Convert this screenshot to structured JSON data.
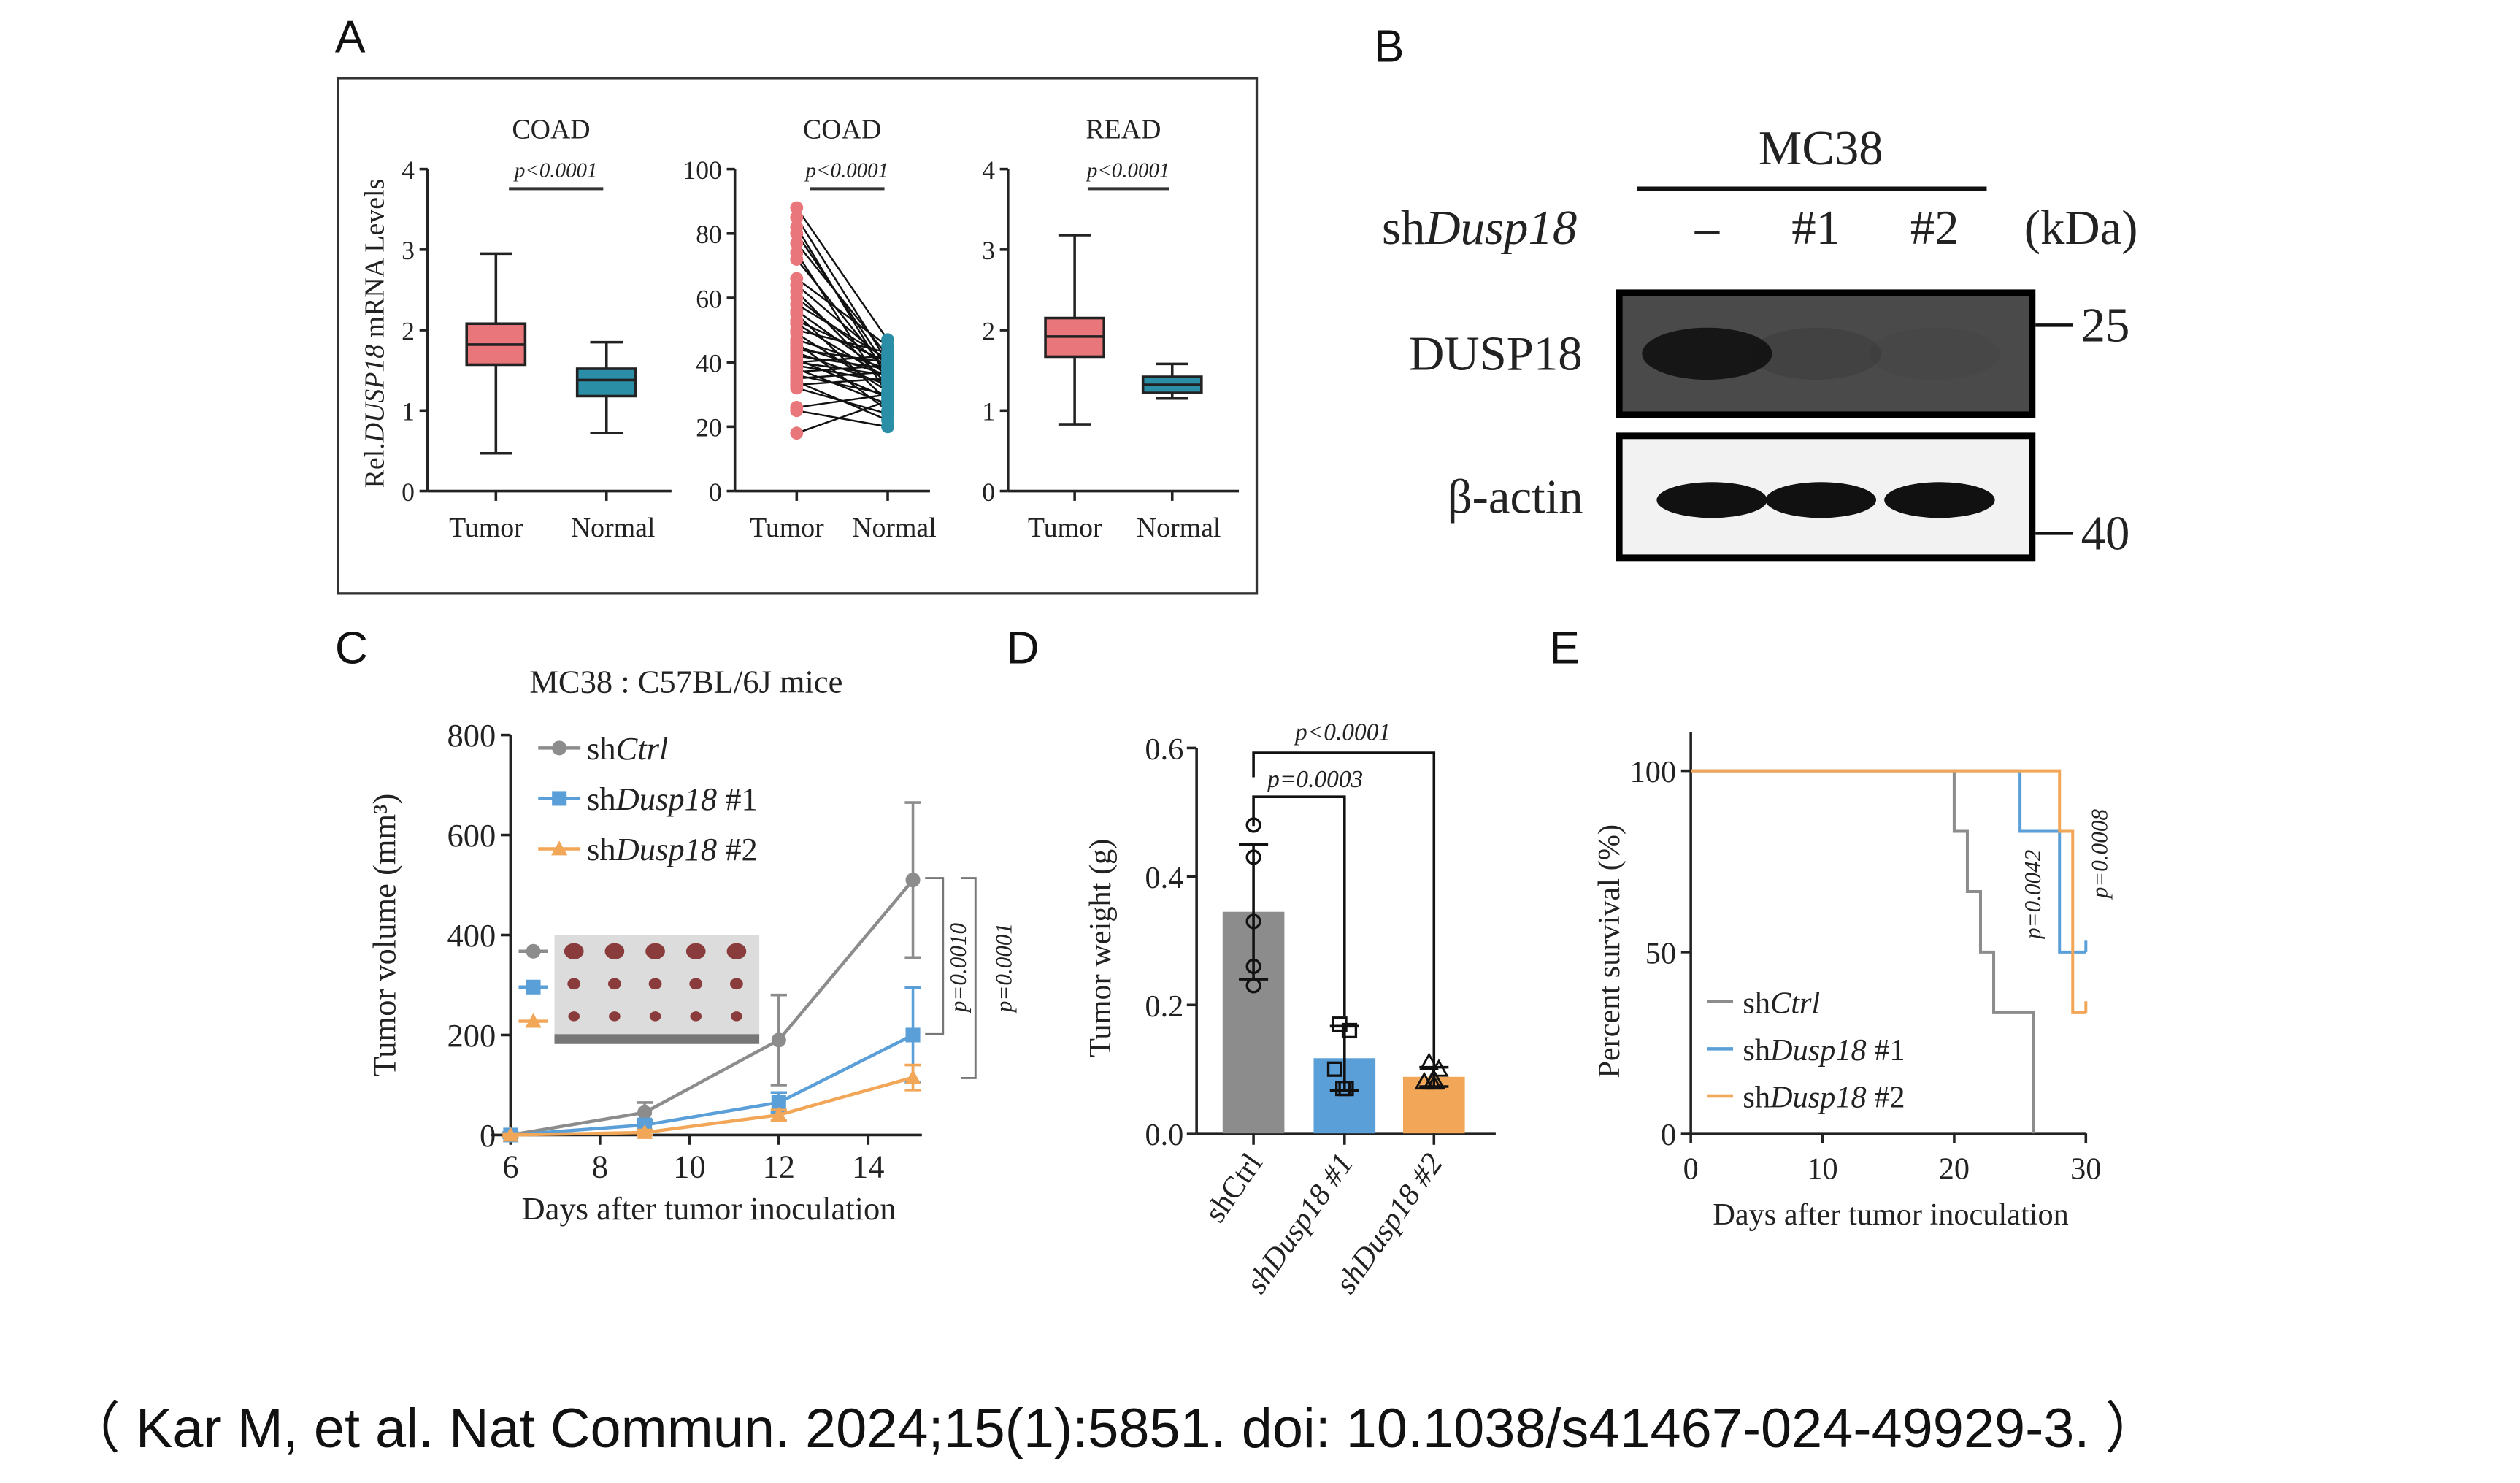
{
  "panel_labels": {
    "a": "A",
    "b": "B",
    "c": "C",
    "d": "D",
    "e": "E"
  },
  "citation": "（ Kar M, et al. Nat Commun. 2024;15(1):5851. doi: 10.1038/s41467-024-49929-3. ）",
  "colors": {
    "tumor": "#e8767a",
    "normal": "#2a8ea6",
    "ctrl": "#8c8c8c",
    "sh1": "#5b9fd8",
    "sh2": "#f2a657"
  },
  "western_blot": {
    "cell_line": "MC38",
    "row_label_prefix": "sh",
    "row_label_gene": "Dusp18",
    "lanes": [
      "–",
      "#1",
      "#2"
    ],
    "unit": "(kDa)",
    "bands": [
      {
        "name": "DUSP18",
        "marker": "25",
        "intensity": [
          0.9,
          0.15,
          0.05
        ]
      },
      {
        "name": "β-actin",
        "marker": "40",
        "intensity": [
          1,
          1,
          1
        ]
      }
    ]
  },
  "chart_data": [
    {
      "type": "box",
      "title": "COAD",
      "ylabel_prefix": "Rel.",
      "ylabel_gene": "DUSP18",
      "ylabel_suffix": " mRNA Levels",
      "ylim": [
        0,
        4
      ],
      "yticks": [
        "0",
        "1",
        "2",
        "3",
        "4"
      ],
      "categories": [
        "Tumor",
        "Normal"
      ],
      "boxes": [
        {
          "min": 0.47,
          "q1": 1.57,
          "median": 1.82,
          "q3": 2.08,
          "max": 2.95
        },
        {
          "min": 0.72,
          "q1": 1.18,
          "median": 1.38,
          "q3": 1.52,
          "max": 1.85
        }
      ],
      "annotation": "p<0.0001"
    },
    {
      "type": "paired",
      "title": "COAD",
      "ylim": [
        0,
        100
      ],
      "yticks": [
        "0",
        "20",
        "40",
        "60",
        "80",
        "100"
      ],
      "categories": [
        "Tumor",
        "Normal"
      ],
      "pairs": [
        [
          88,
          47
        ],
        [
          85,
          40
        ],
        [
          82,
          35
        ],
        [
          80,
          38
        ],
        [
          77,
          42
        ],
        [
          74,
          30
        ],
        [
          72,
          37
        ],
        [
          66,
          45
        ],
        [
          64,
          40
        ],
        [
          62,
          33
        ],
        [
          60,
          38
        ],
        [
          58,
          41
        ],
        [
          56,
          36
        ],
        [
          55,
          28
        ],
        [
          53,
          40
        ],
        [
          52,
          35
        ],
        [
          50,
          43
        ],
        [
          49,
          31
        ],
        [
          47,
          38
        ],
        [
          46,
          25
        ],
        [
          45,
          36
        ],
        [
          44,
          40
        ],
        [
          43,
          33
        ],
        [
          42,
          38
        ],
        [
          41,
          29
        ],
        [
          40,
          36
        ],
        [
          40,
          42
        ],
        [
          39,
          34
        ],
        [
          38,
          27
        ],
        [
          37,
          39
        ],
        [
          36,
          30
        ],
        [
          35,
          37
        ],
        [
          34,
          22
        ],
        [
          33,
          35
        ],
        [
          32,
          24
        ],
        [
          26,
          30
        ],
        [
          25,
          20
        ],
        [
          18,
          28
        ]
      ],
      "annotation": "p<0.0001"
    },
    {
      "type": "box",
      "title": "READ",
      "ylim": [
        0,
        4
      ],
      "yticks": [
        "0",
        "1",
        "2",
        "3",
        "4"
      ],
      "categories": [
        "Tumor",
        "Normal"
      ],
      "boxes": [
        {
          "min": 0.83,
          "q1": 1.67,
          "median": 1.92,
          "q3": 2.15,
          "max": 3.18
        },
        {
          "min": 1.15,
          "q1": 1.22,
          "median": 1.32,
          "q3": 1.42,
          "max": 1.58
        }
      ],
      "annotation": "p<0.0001"
    },
    {
      "type": "line",
      "title": "MC38 : C57BL/6J mice",
      "xlabel": "Days after tumor inoculation",
      "ylabel": "Tumor volume (mm³)",
      "xlim": [
        6,
        15.3
      ],
      "ylim": [
        0,
        800
      ],
      "xticks": [
        "6",
        "8",
        "10",
        "12",
        "14"
      ],
      "yticks": [
        "0",
        "200",
        "400",
        "600",
        "800"
      ],
      "x": [
        6,
        9,
        12,
        15
      ],
      "series": [
        {
          "name_prefix": "sh",
          "name_gene": "Ctrl",
          "name_suffix": "",
          "marker": "circle",
          "values": [
            0,
            45,
            190,
            510
          ],
          "error": [
            5,
            20,
            90,
            155
          ]
        },
        {
          "name_prefix": "sh",
          "name_gene": "Dusp18",
          "name_suffix": " #1",
          "marker": "square",
          "values": [
            0,
            20,
            65,
            200
          ],
          "error": [
            5,
            10,
            20,
            95
          ]
        },
        {
          "name_prefix": "sh",
          "name_gene": "Dusp18",
          "name_suffix": " #2",
          "marker": "triangle",
          "values": [
            0,
            5,
            40,
            115
          ],
          "error": [
            3,
            5,
            10,
            25
          ]
        }
      ],
      "annotations": [
        "p=0.0010",
        "p=0.0001"
      ],
      "legend": "top-left"
    },
    {
      "type": "bar",
      "ylabel": "Tumor weight (g)",
      "ylim": [
        0,
        0.6
      ],
      "yticks": [
        "0.0",
        "0.2",
        "0.4",
        "0.6"
      ],
      "categories": [
        "shCtrl",
        "shDusp18 #1",
        "shDusp18 #2"
      ],
      "values": [
        0.345,
        0.117,
        0.088
      ],
      "error": [
        0.105,
        0.05,
        0.015
      ],
      "points": [
        [
          0.48,
          0.43,
          0.33,
          0.26,
          0.23
        ],
        [
          0.17,
          0.16,
          0.1,
          0.07,
          0.07
        ],
        [
          0.11,
          0.1,
          0.08,
          0.08,
          0.08
        ]
      ],
      "annotations": [
        "p=0.0003",
        "p<0.0001"
      ]
    },
    {
      "type": "step",
      "xlabel": "Days after tumor inoculation",
      "ylabel": "Percent survival (%)",
      "xlim": [
        0,
        30
      ],
      "ylim": [
        0,
        100
      ],
      "xticks": [
        "0",
        "10",
        "20",
        "30"
      ],
      "yticks": [
        "0",
        "50",
        "100"
      ],
      "series": [
        {
          "name": "shCtrl",
          "steps": [
            [
              0,
              100
            ],
            [
              20,
              83.3
            ],
            [
              21,
              66.7
            ],
            [
              22,
              50
            ],
            [
              23,
              33.3
            ],
            [
              26,
              0
            ]
          ],
          "end": 26
        },
        {
          "name": "shDusp18 #1",
          "steps": [
            [
              0,
              100
            ],
            [
              25,
              83.3
            ],
            [
              28,
              50
            ]
          ],
          "end": 30
        },
        {
          "name": "shDusp18 #2",
          "steps": [
            [
              0,
              100
            ],
            [
              28,
              83.3
            ],
            [
              29,
              33.3
            ]
          ],
          "end": 30
        }
      ],
      "legend_labels": [
        {
          "prefix": "sh",
          "gene": "Ctrl",
          "suffix": ""
        },
        {
          "prefix": "sh",
          "gene": "Dusp18",
          "suffix": " #1"
        },
        {
          "prefix": "sh",
          "gene": "Dusp18",
          "suffix": " #2"
        }
      ],
      "annotations": [
        "p=0.0042",
        "p=0.0008"
      ],
      "legend": "bottom-left"
    }
  ]
}
